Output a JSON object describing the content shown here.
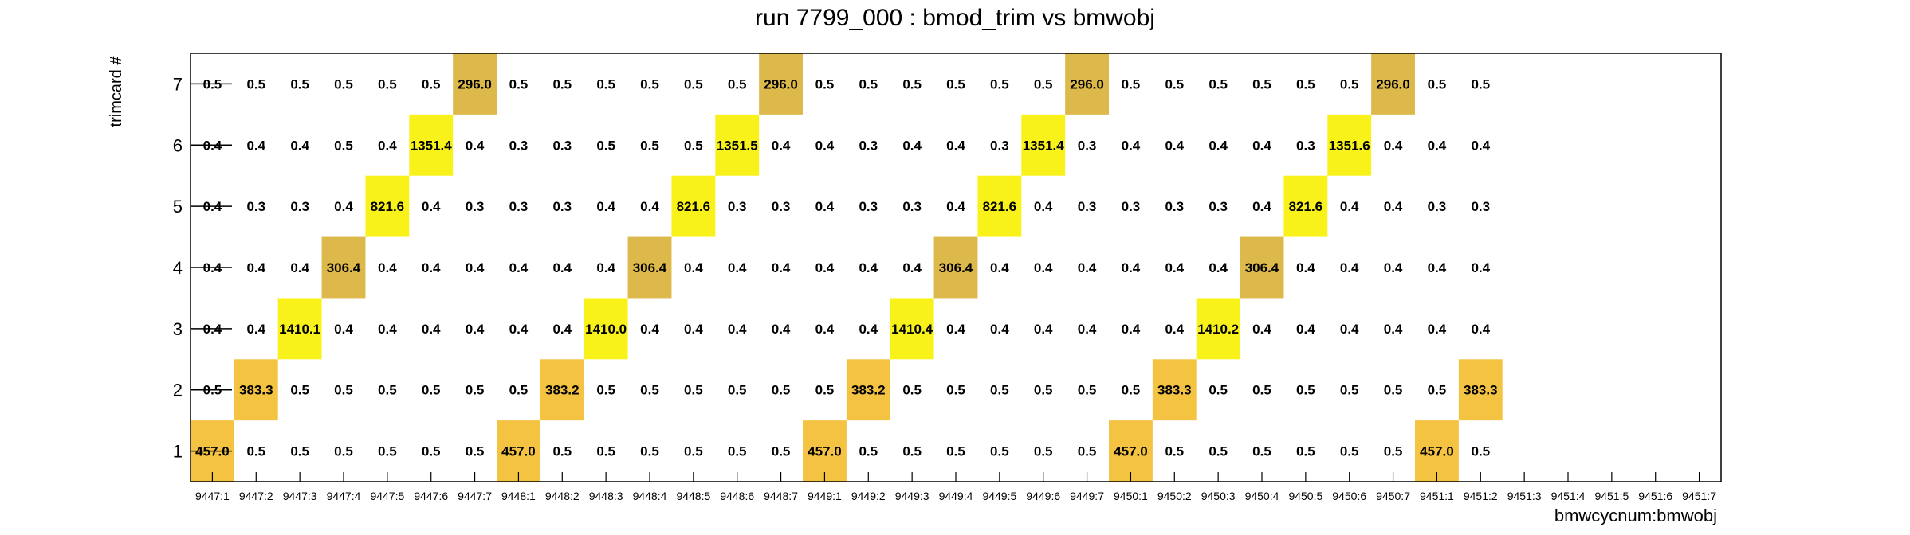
{
  "chart_data": {
    "type": "heatmap",
    "title": "run 7799_000 : bmod_trim vs bmwobj",
    "xlabel": "bmwcycnum:bmwobj",
    "ylabel": "trimcard #",
    "y_categories": [
      "1",
      "2",
      "3",
      "4",
      "5",
      "6",
      "7"
    ],
    "x_categories": [
      "9447:1",
      "9447:2",
      "9447:3",
      "9447:4",
      "9447:5",
      "9447:6",
      "9447:7",
      "9448:1",
      "9448:2",
      "9448:3",
      "9448:4",
      "9448:5",
      "9448:6",
      "9448:7",
      "9449:1",
      "9449:2",
      "9449:3",
      "9449:4",
      "9449:5",
      "9449:6",
      "9449:7",
      "9450:1",
      "9450:2",
      "9450:3",
      "9450:4",
      "9450:5",
      "9450:6",
      "9450:7",
      "9451:1",
      "9451:2",
      "9451:3",
      "9451:4",
      "9451:5",
      "9451:6",
      "9451:7"
    ],
    "rows": [
      {
        "y": "1",
        "values": [
          457.0,
          0.5,
          0.5,
          0.5,
          0.5,
          0.5,
          0.5,
          457.0,
          0.5,
          0.5,
          0.5,
          0.5,
          0.5,
          0.5,
          457.0,
          0.5,
          0.5,
          0.5,
          0.5,
          0.5,
          0.5,
          457.0,
          0.5,
          0.5,
          0.5,
          0.5,
          0.5,
          0.5,
          457.0,
          0.5,
          null,
          null,
          null,
          null,
          null
        ]
      },
      {
        "y": "2",
        "values": [
          0.5,
          383.3,
          0.5,
          0.5,
          0.5,
          0.5,
          0.5,
          0.5,
          383.2,
          0.5,
          0.5,
          0.5,
          0.5,
          0.5,
          0.5,
          383.2,
          0.5,
          0.5,
          0.5,
          0.5,
          0.5,
          0.5,
          383.3,
          0.5,
          0.5,
          0.5,
          0.5,
          0.5,
          0.5,
          383.3,
          null,
          null,
          null,
          null,
          null
        ]
      },
      {
        "y": "3",
        "values": [
          0.4,
          0.4,
          1410.1,
          0.4,
          0.4,
          0.4,
          0.4,
          0.4,
          0.4,
          1410.0,
          0.4,
          0.4,
          0.4,
          0.4,
          0.4,
          0.4,
          1410.4,
          0.4,
          0.4,
          0.4,
          0.4,
          0.4,
          0.4,
          1410.2,
          0.4,
          0.4,
          0.4,
          0.4,
          0.4,
          0.4,
          null,
          null,
          null,
          null,
          null
        ]
      },
      {
        "y": "4",
        "values": [
          0.4,
          0.4,
          0.4,
          306.4,
          0.4,
          0.4,
          0.4,
          0.4,
          0.4,
          0.4,
          306.4,
          0.4,
          0.4,
          0.4,
          0.4,
          0.4,
          0.4,
          306.4,
          0.4,
          0.4,
          0.4,
          0.4,
          0.4,
          0.4,
          306.4,
          0.4,
          0.4,
          0.4,
          0.4,
          0.4,
          null,
          null,
          null,
          null,
          null
        ]
      },
      {
        "y": "5",
        "values": [
          0.4,
          0.3,
          0.3,
          0.4,
          821.6,
          0.4,
          0.3,
          0.3,
          0.3,
          0.4,
          0.4,
          821.6,
          0.3,
          0.3,
          0.4,
          0.3,
          0.3,
          0.4,
          821.6,
          0.4,
          0.3,
          0.3,
          0.3,
          0.3,
          0.4,
          821.6,
          0.4,
          0.4,
          0.3,
          0.3,
          null,
          null,
          null,
          null,
          null
        ]
      },
      {
        "y": "6",
        "values": [
          0.4,
          0.4,
          0.4,
          0.5,
          0.4,
          1351.4,
          0.4,
          0.3,
          0.3,
          0.5,
          0.5,
          0.5,
          1351.5,
          0.4,
          0.4,
          0.3,
          0.4,
          0.4,
          0.3,
          1351.4,
          0.3,
          0.4,
          0.4,
          0.4,
          0.4,
          0.3,
          1351.6,
          0.4,
          0.4,
          0.4,
          null,
          null,
          null,
          null,
          null
        ]
      },
      {
        "y": "7",
        "values": [
          0.5,
          0.5,
          0.5,
          0.5,
          0.5,
          0.5,
          296.0,
          0.5,
          0.5,
          0.5,
          0.5,
          0.5,
          0.5,
          296.0,
          0.5,
          0.5,
          0.5,
          0.5,
          0.5,
          0.5,
          296.0,
          0.5,
          0.5,
          0.5,
          0.5,
          0.5,
          0.5,
          296.0,
          0.5,
          0.5,
          null,
          null,
          null,
          null,
          null
        ]
      }
    ],
    "color_scale": {
      "low": "#ddb84a",
      "mid": "#f5c342",
      "high": "#f8f21a"
    },
    "grid": false,
    "legend": "none"
  }
}
